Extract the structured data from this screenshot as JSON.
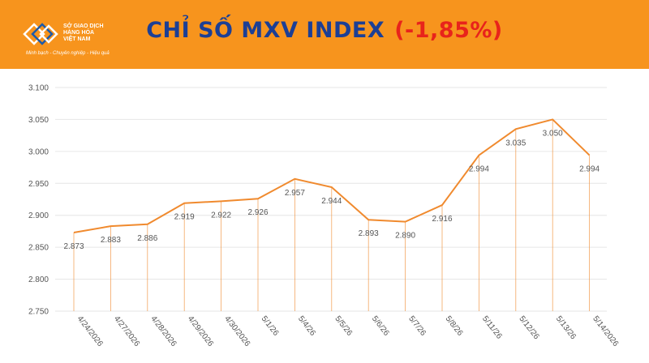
{
  "header": {
    "logo_lines": [
      "SỞ GIAO DỊCH",
      "HÀNG HÓA",
      "VIỆT NAM"
    ],
    "slogan": "Minh bạch - Chuyên nghiệp - Hiệu quả",
    "title_main": "CHỈ SỐ MXV INDEX",
    "title_change": "(-1,85%)",
    "colors": {
      "band": "#f7941d",
      "title": "#1c3f95",
      "change": "#e8231b"
    }
  },
  "chart_data": {
    "type": "line",
    "title": "CHỈ SỐ MXV INDEX (-1,85%)",
    "categories": [
      "4/24/2026",
      "4/27/2026",
      "4/28/2026",
      "4/29/2026",
      "4/30/2026",
      "5/1/26",
      "5/4/26",
      "5/5/26",
      "5/6/26",
      "5/7/26",
      "5/8/26",
      "5/11/26",
      "5/12/26",
      "5/13/26",
      "5/14/2026"
    ],
    "values": [
      2873,
      2883,
      2886,
      2919,
      2922,
      2926,
      2957,
      2944,
      2893,
      2890,
      2916,
      2994,
      3035,
      3050,
      2994
    ],
    "value_labels": [
      "2.873",
      "2.883",
      "2.886",
      "2.919",
      "2.922",
      "2.926",
      "2.957",
      "2.944",
      "2.893",
      "2.890",
      "2.916",
      "2.994",
      "3.035",
      "3.050",
      "2.994"
    ],
    "ylim": [
      2750,
      3100
    ],
    "yticks": [
      2750,
      2800,
      2850,
      2900,
      2950,
      3000,
      3050,
      3100
    ],
    "ytick_labels": [
      "2.750",
      "2.800",
      "2.850",
      "2.900",
      "2.950",
      "3.000",
      "3.050",
      "3.100"
    ],
    "xlabel": "",
    "ylabel": "",
    "grid": true,
    "drop_lines": true,
    "line_color": "#f08a2e",
    "grid_color": "#e6e6e6",
    "legend": "none"
  }
}
